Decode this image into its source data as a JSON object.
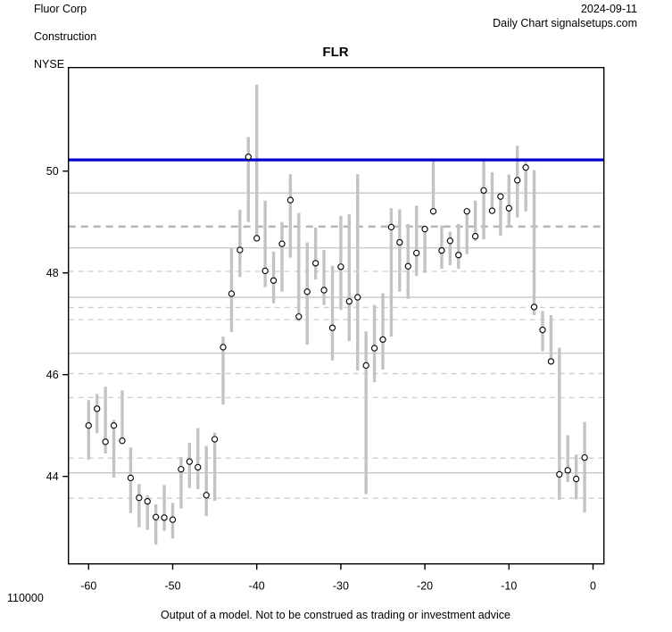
{
  "header": {
    "company": "Fluor Corp",
    "sector": "Construction",
    "exchange": "NYSE",
    "date": "2024-09-11",
    "chart_label": "Daily Chart signalsetups.com"
  },
  "title": "FLR",
  "footer": {
    "volume": "110000",
    "disclaimer": "Output of a model. Not to be construed as trading or investment advice"
  },
  "colors": {
    "signal_line": "#0000cd",
    "bar": "#c3c3c3",
    "grid_solid": "#c6c6c6",
    "grid_dashed": "#cecece",
    "grid_dashed_bold": "#b8b8b8",
    "marker_fill": "#ffffff",
    "marker_stroke": "#000000",
    "box": "#000000"
  },
  "chart_data": {
    "type": "scatter",
    "variant": "high-low-close range bars, close shown as open circle",
    "title": "FLR",
    "xlabel": "",
    "ylabel": "",
    "xlim": [
      -62.4,
      1.3
    ],
    "ylim": [
      42.28,
      52.04
    ],
    "x_ticks": [
      -60,
      -50,
      -40,
      -30,
      -20,
      -10,
      0
    ],
    "y_ticks": [
      44,
      46,
      48,
      50
    ],
    "grid": "horizontal reference levels only",
    "legend": "none",
    "signal_line_level": 50.22,
    "solid_levels": [
      49.57,
      48.49,
      47.52,
      46.42,
      44.07
    ],
    "dashed_bold_levels": [
      48.91
    ],
    "dashed_levels": [
      48.03,
      47.32,
      47.08,
      46.02,
      45.55,
      44.36,
      43.57
    ],
    "x": [
      -60,
      -59,
      -58,
      -57,
      -56,
      -55,
      -54,
      -53,
      -52,
      -51,
      -50,
      -49,
      -48,
      -47,
      -46,
      -45,
      -44,
      -43,
      -42,
      -41,
      -40,
      -39,
      -38,
      -37,
      -36,
      -35,
      -34,
      -33,
      -32,
      -31,
      -30,
      -29,
      -28,
      -27,
      -26,
      -25,
      -24,
      -23,
      -22,
      -21,
      -20,
      -19,
      -18,
      -17,
      -16,
      -15,
      -14,
      -13,
      -12,
      -11,
      -10,
      -9,
      -8,
      -7,
      -6,
      -5,
      -4,
      -3,
      -2,
      -1
    ],
    "series": [
      {
        "name": "high",
        "values": [
          45.5,
          45.62,
          45.76,
          45.11,
          45.69,
          44.57,
          43.85,
          43.63,
          43.45,
          43.83,
          43.48,
          44.38,
          44.66,
          44.95,
          44.6,
          44.86,
          46.75,
          48.48,
          49.24,
          50.67,
          51.7,
          49.42,
          48.42,
          49.0,
          49.94,
          49.18,
          48.6,
          48.89,
          48.45,
          48.14,
          49.12,
          49.15,
          49.94,
          46.85,
          47.37,
          47.6,
          49.27,
          49.25,
          48.96,
          49.32,
          48.9,
          50.21,
          48.93,
          48.81,
          48.96,
          49.23,
          49.42,
          50.22,
          49.98,
          49.57,
          49.93,
          50.5,
          50.18,
          50.02,
          47.25,
          47.17,
          46.53,
          44.81,
          44.43,
          45.07
        ]
      },
      {
        "name": "low",
        "values": [
          44.33,
          44.85,
          44.45,
          43.98,
          44.64,
          43.28,
          43.0,
          42.95,
          42.66,
          42.93,
          42.78,
          43.37,
          43.77,
          43.75,
          43.22,
          43.52,
          45.41,
          46.84,
          47.92,
          49.0,
          48.65,
          47.72,
          47.4,
          47.63,
          48.3,
          47.05,
          46.59,
          47.87,
          47.37,
          46.28,
          47.27,
          46.66,
          46.08,
          43.65,
          45.85,
          46.1,
          46.75,
          47.63,
          47.49,
          47.94,
          48.0,
          49.14,
          48.08,
          48.15,
          48.08,
          48.37,
          48.63,
          48.66,
          49.16,
          48.73,
          48.93,
          49.09,
          49.21,
          47.17,
          46.46,
          46.2,
          43.54,
          43.89,
          43.55,
          43.29
        ]
      },
      {
        "name": "close",
        "values": [
          45.0,
          45.33,
          44.68,
          45.0,
          44.7,
          43.97,
          43.58,
          43.51,
          43.2,
          43.19,
          43.15,
          44.14,
          44.29,
          44.18,
          43.63,
          44.73,
          46.54,
          47.59,
          48.45,
          50.28,
          48.68,
          48.04,
          47.85,
          48.57,
          49.43,
          47.14,
          47.63,
          48.19,
          47.66,
          46.92,
          48.12,
          47.44,
          47.52,
          46.18,
          46.52,
          46.69,
          48.9,
          48.6,
          48.13,
          48.39,
          48.86,
          49.21,
          48.44,
          48.63,
          48.35,
          49.21,
          48.72,
          49.62,
          49.22,
          49.5,
          49.27,
          49.82,
          50.07,
          47.33,
          46.88,
          46.26,
          44.04,
          44.12,
          43.95,
          44.37
        ]
      }
    ]
  }
}
